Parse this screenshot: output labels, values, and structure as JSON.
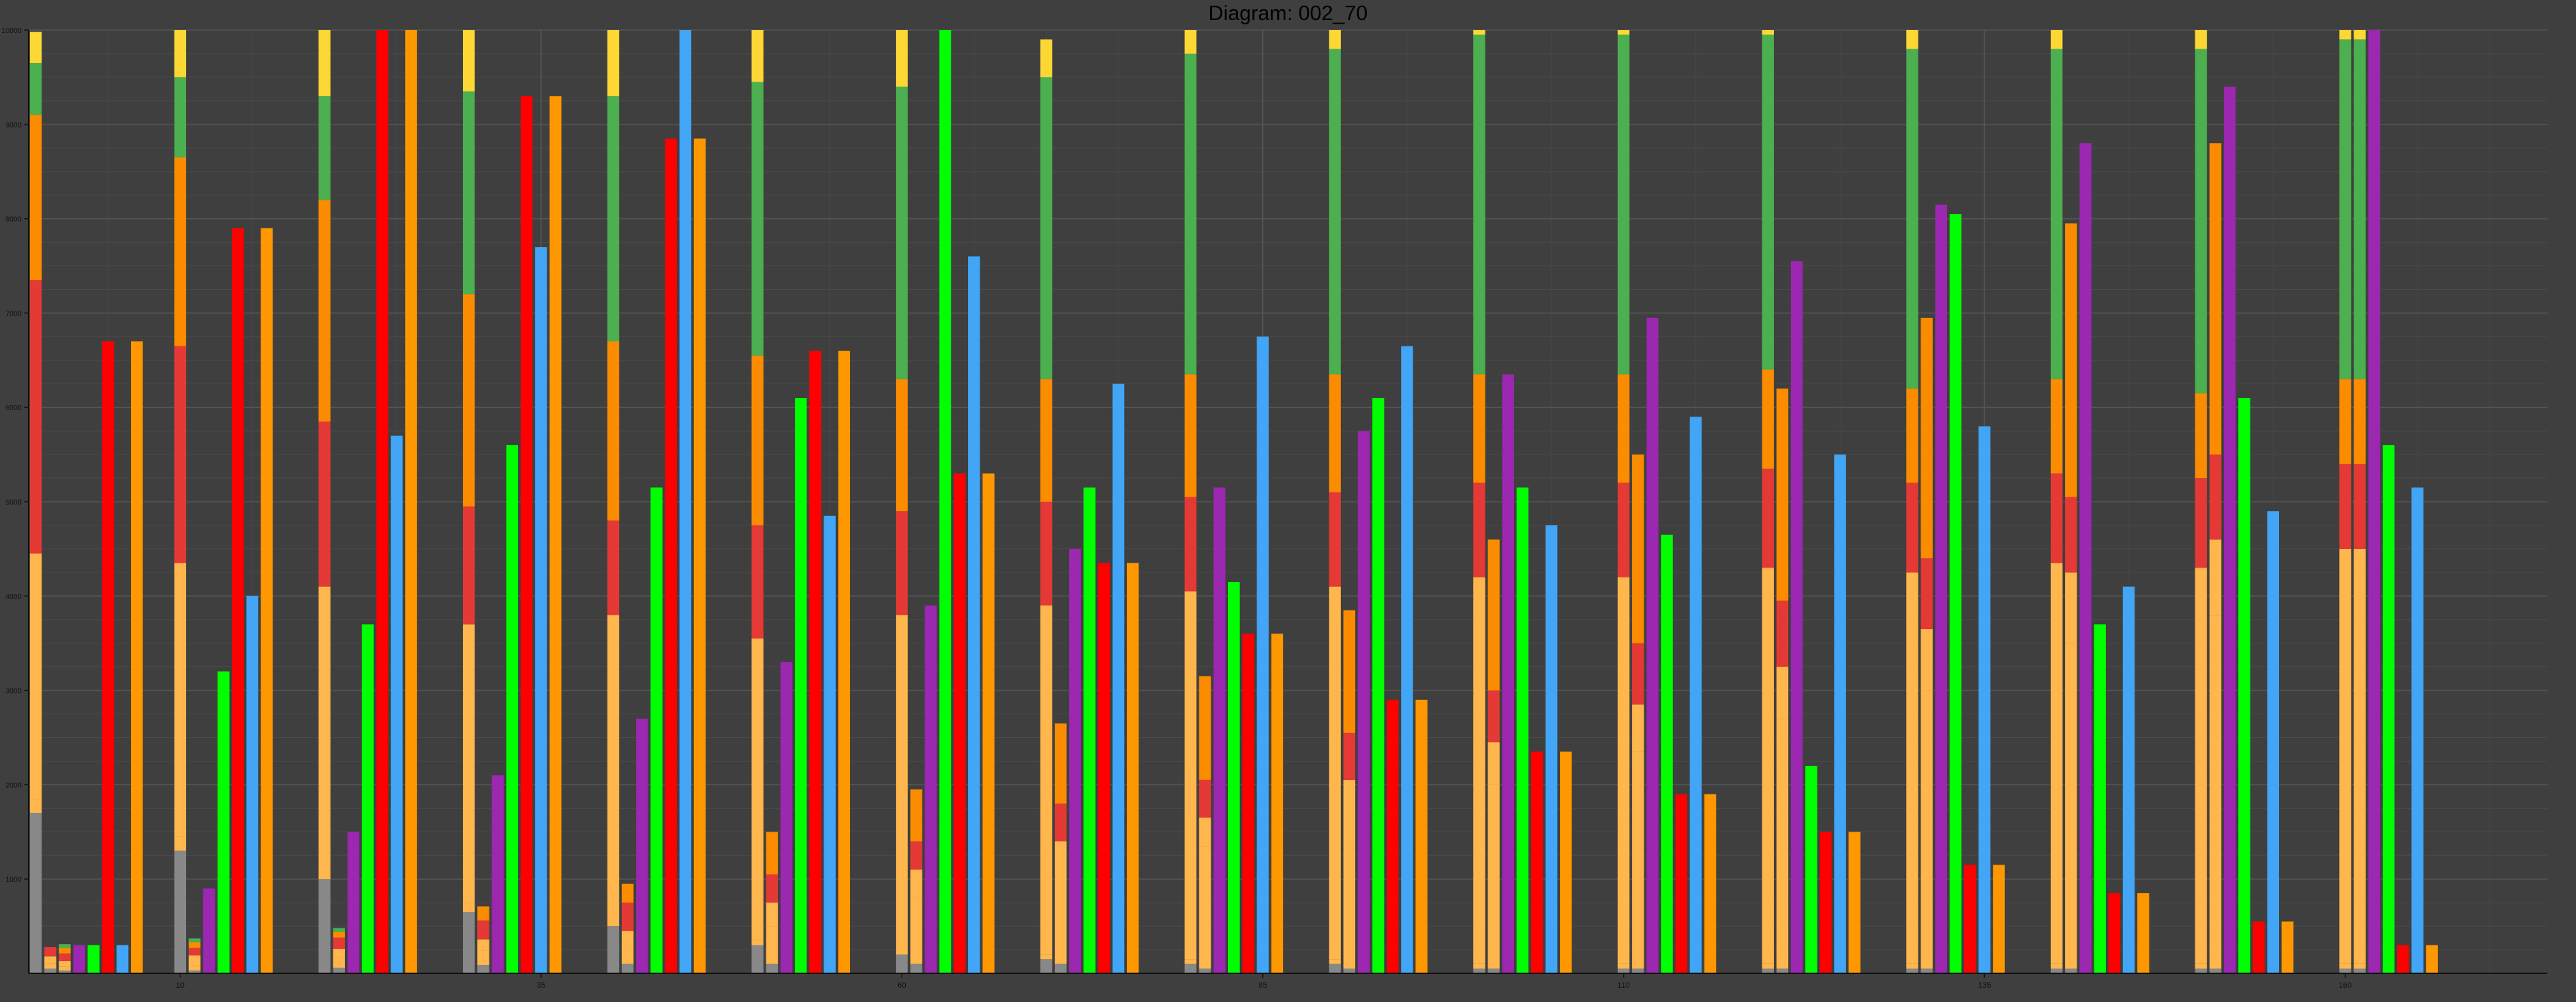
{
  "chart_data": {
    "type": "bar",
    "title": "Diagram: 002_70",
    "xlabel": "",
    "ylabel": "",
    "xlim": [
      -0.5,
      174
    ],
    "ylim": [
      0,
      10000
    ],
    "x_ticks": [
      10,
      35,
      60,
      85,
      110,
      135,
      160
    ],
    "y_ticks": [
      1000,
      2000,
      3000,
      4000,
      5000,
      6000,
      7000,
      8000,
      9000,
      10000
    ],
    "grid": true,
    "legend": "none",
    "colors": {
      "grey": "#888888",
      "light_orange": "#ffb74d",
      "red": "#e53935",
      "orange": "#fb8c00",
      "green": "#4caf50",
      "yellow": "#fdd835",
      "pure_red": "#ff0000",
      "lime": "#00ff00",
      "purple": "#9c27b0",
      "blue": "#42a5f5",
      "deep_orange": "#ff9800"
    },
    "groups": [
      {
        "stacks": [
          [
            1700,
            150,
            2600,
            2900,
            1750,
            550,
            330
          ],
          [
            50,
            50,
            80,
            100,
            0,
            0,
            0
          ],
          [
            30,
            40,
            60,
            80,
            60,
            40,
            0
          ]
        ],
        "purple": 300,
        "lime": 300,
        "pure_red": 6700,
        "blue": 300,
        "deep_orange": 6700
      },
      {
        "stacks": [
          [
            1300,
            150,
            2900,
            2300,
            2000,
            850,
            550
          ],
          [
            30,
            60,
            100,
            80,
            60,
            40,
            0
          ]
        ],
        "purple": 900,
        "lime": 3200,
        "pure_red": 7900,
        "blue": 4000,
        "deep_orange": 7900
      },
      {
        "stacks": [
          [
            1000,
            100,
            3000,
            1750,
            2350,
            1100,
            700
          ],
          [
            60,
            100,
            100,
            120,
            60,
            40,
            0
          ]
        ],
        "purple": 1500,
        "lime": 3700,
        "pure_red": 10000,
        "blue": 5700,
        "deep_orange": 10000
      },
      {
        "stacks": [
          [
            650,
            100,
            2950,
            1250,
            2250,
            2150,
            650
          ],
          [
            90,
            150,
            120,
            200,
            150,
            0,
            0
          ]
        ],
        "purple": 2100,
        "lime": 5600,
        "pure_red": 9300,
        "blue": 7700,
        "deep_orange": 9300
      },
      {
        "stacks": [
          [
            500,
            50,
            3250,
            1000,
            1900,
            2600,
            700
          ],
          [
            100,
            200,
            150,
            300,
            200,
            0,
            0
          ]
        ],
        "purple": 2700,
        "lime": 5150,
        "pure_red": 8850,
        "blue": 10000,
        "deep_orange": 8850
      },
      {
        "stacks": [
          [
            300,
            50,
            3200,
            1200,
            1800,
            2900,
            550
          ],
          [
            100,
            400,
            250,
            300,
            450,
            0,
            0
          ]
        ],
        "purple": 3300,
        "lime": 6100,
        "pure_red": 6600,
        "blue": 4850,
        "deep_orange": 6600
      },
      {
        "stacks": [
          [
            200,
            50,
            3550,
            1100,
            1400,
            3100,
            600
          ],
          [
            100,
            700,
            300,
            300,
            550,
            0,
            0
          ]
        ],
        "purple": 3900,
        "lime": 10000,
        "pure_red": 5300,
        "blue": 7600,
        "deep_orange": 5300
      },
      {
        "stacks": [
          [
            150,
            50,
            3700,
            1100,
            1300,
            3200,
            400
          ],
          [
            100,
            1000,
            300,
            400,
            850,
            0,
            0
          ]
        ],
        "purple": 4500,
        "lime": 5150,
        "pure_red": 4350,
        "blue": 6250,
        "deep_orange": 4350
      },
      {
        "stacks": [
          [
            100,
            50,
            3900,
            1000,
            1300,
            3400,
            350
          ],
          [
            50,
            1300,
            300,
            400,
            1100,
            0,
            0
          ]
        ],
        "purple": 5150,
        "lime": 4150,
        "pure_red": 3600,
        "blue": 6750,
        "deep_orange": 3600
      },
      {
        "stacks": [
          [
            100,
            50,
            3950,
            1000,
            1250,
            3450,
            300
          ],
          [
            50,
            1600,
            400,
            500,
            1300,
            0,
            0
          ]
        ],
        "purple": 5750,
        "lime": 6100,
        "pure_red": 2900,
        "blue": 6650,
        "deep_orange": 2900
      },
      {
        "stacks": [
          [
            50,
            50,
            4100,
            1000,
            1150,
            3600,
            250
          ],
          [
            50,
            1950,
            450,
            550,
            1600,
            0,
            0
          ]
        ],
        "purple": 6350,
        "lime": 5150,
        "pure_red": 2350,
        "blue": 4750,
        "deep_orange": 2350
      },
      {
        "stacks": [
          [
            50,
            50,
            4100,
            1000,
            1150,
            3600,
            250
          ],
          [
            50,
            2300,
            500,
            650,
            2000,
            0,
            0
          ]
        ],
        "purple": 6950,
        "lime": 4650,
        "pure_red": 1900,
        "blue": 5900,
        "deep_orange": 1900
      },
      {
        "stacks": [
          [
            50,
            50,
            4200,
            1050,
            1050,
            3550,
            250
          ],
          [
            50,
            2650,
            550,
            700,
            2250,
            0,
            0
          ]
        ],
        "purple": 7550,
        "lime": 2200,
        "pure_red": 1500,
        "blue": 5500,
        "deep_orange": 1500
      },
      {
        "stacks": [
          [
            50,
            50,
            4150,
            950,
            1000,
            3600,
            200
          ],
          [
            50,
            2950,
            650,
            750,
            2550,
            0,
            0
          ]
        ],
        "purple": 8150,
        "lime": 8050,
        "pure_red": 1150,
        "blue": 5800,
        "deep_orange": 1150
      },
      {
        "stacks": [
          [
            50,
            50,
            4250,
            950,
            1000,
            3500,
            200
          ],
          [
            50,
            3450,
            750,
            800,
            2900,
            0,
            0
          ]
        ],
        "purple": 8800,
        "lime": 3700,
        "pure_red": 850,
        "blue": 4100,
        "deep_orange": 850
      },
      {
        "stacks": [
          [
            50,
            50,
            4200,
            950,
            900,
            3650,
            200
          ],
          [
            50,
            3750,
            800,
            900,
            3300,
            0,
            0
          ]
        ],
        "purple": 9400,
        "lime": 6100,
        "pure_red": 550,
        "blue": 4900,
        "deep_orange": 550
      },
      {
        "stacks": [
          [
            50,
            50,
            4400,
            900,
            900,
            3600,
            100
          ],
          [
            50,
            50,
            4400,
            900,
            900,
            3600,
            100
          ]
        ],
        "purple": 10000,
        "lime": 5600,
        "pure_red": 300,
        "blue": 5150,
        "deep_orange": 300
      }
    ]
  }
}
